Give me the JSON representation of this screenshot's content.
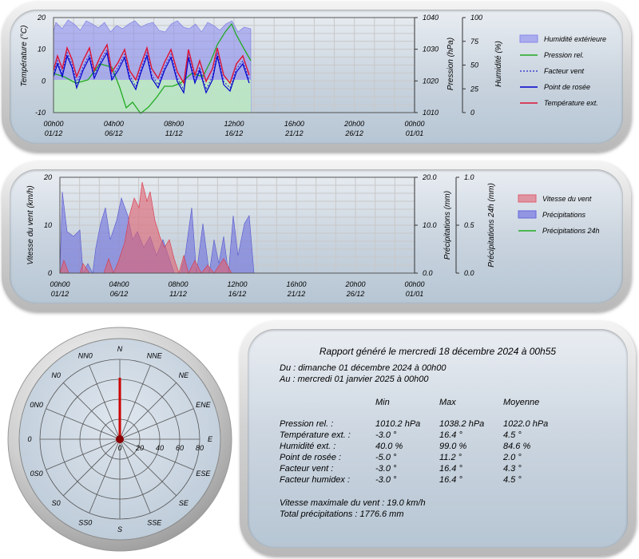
{
  "chart1": {
    "y1_label": "Température (°C)",
    "y2_label": "Pression (hPa)",
    "y3_label": "Humidité (%)",
    "y1_ticks": [
      "20",
      "10",
      "0",
      "-10"
    ],
    "y2_ticks": [
      "1040",
      "1030",
      "1020",
      "1010"
    ],
    "y3_ticks": [
      "100",
      "75",
      "50",
      "25",
      "0"
    ],
    "x_ticks": [
      {
        "time": "00h00",
        "date": "01/12"
      },
      {
        "time": "04h00",
        "date": "06/12"
      },
      {
        "time": "08h00",
        "date": "11/12"
      },
      {
        "time": "12h00",
        "date": "16/12"
      },
      {
        "time": "16h00",
        "date": "21/12"
      },
      {
        "time": "20h00",
        "date": "26/12"
      },
      {
        "time": "00h00",
        "date": "01/01"
      }
    ],
    "legend": [
      {
        "label": "Humidité extérieure",
        "color": "#8888ee",
        "style": "fill"
      },
      {
        "label": "Pression rel.",
        "color": "#22aa22",
        "style": "line"
      },
      {
        "label": "Facteur vent",
        "color": "#2222cc",
        "style": "dash"
      },
      {
        "label": "Point de rosée",
        "color": "#0000cc",
        "style": "line"
      },
      {
        "label": "Température ext.",
        "color": "#dd1133",
        "style": "line"
      }
    ]
  },
  "chart2": {
    "y1_label": "Vitesse du vent (km/h)",
    "y2_label": "Précipitations (mm)",
    "y3_label": "Précipitations 24h (mm)",
    "y1_ticks": [
      "20",
      "10",
      "0"
    ],
    "y2_ticks": [
      "20.0",
      "10.0",
      "0.0"
    ],
    "y3_ticks": [
      "1.0",
      "0.5",
      "0.0"
    ],
    "x_ticks": [
      {
        "time": "00h00",
        "date": "01/12"
      },
      {
        "time": "04h00",
        "date": "06/12"
      },
      {
        "time": "08h00",
        "date": "11/12"
      },
      {
        "time": "12h00",
        "date": "16/12"
      },
      {
        "time": "16h00",
        "date": "21/12"
      },
      {
        "time": "20h00",
        "date": "26/12"
      },
      {
        "time": "00h00",
        "date": "01/01"
      }
    ],
    "legend": [
      {
        "label": "Vitesse du vent",
        "color": "#e06070",
        "style": "fill"
      },
      {
        "label": "Précipitations",
        "color": "#6666dd",
        "style": "fill"
      },
      {
        "label": "Précipitations 24h",
        "color": "#22aa22",
        "style": "line"
      }
    ]
  },
  "compass": {
    "directions": [
      "N",
      "NNE",
      "NE",
      "ENE",
      "E",
      "ESE",
      "SE",
      "SSE",
      "S",
      "SS0",
      "S0",
      "0S0",
      "0",
      "0N0",
      "N0",
      "NN0"
    ],
    "ring_labels": [
      "0",
      "20",
      "40",
      "60",
      "80"
    ],
    "accent_color": "#cc0000"
  },
  "report": {
    "title": "Rapport généré le mercredi 18 décembre 2024 à 00h55",
    "from": "Du : dimanche 01 décembre 2024 à 00h00",
    "to": "Au : mercredi 01 janvier 2025 à 00h00",
    "headers": {
      "min": "Min",
      "max": "Max",
      "avg": "Moyenne"
    },
    "rows": [
      {
        "label": "Pression rel. :",
        "min": "1010.2 hPa",
        "max": "1038.2 hPa",
        "avg": "1022.0 hPa"
      },
      {
        "label": "Température ext. :",
        "min": "-3.0 °",
        "max": "16.4 °",
        "avg": "4.5 °"
      },
      {
        "label": "Humidité ext. :",
        "min": "40.0 %",
        "max": "99.0 %",
        "avg": "84.6 %"
      },
      {
        "label": "Point de rosée :",
        "min": "-5.0 °",
        "max": "11.2 °",
        "avg": "2.0 °"
      },
      {
        "label": "Facteur vent :",
        "min": "-3.0 °",
        "max": "16.4 °",
        "avg": "4.3 °"
      },
      {
        "label": "Facteur humidex :",
        "min": "-3.0 °",
        "max": "16.4 °",
        "avg": "4.5 °"
      }
    ],
    "max_wind": "Vitesse maximale du vent : 19.0 km/h",
    "total_rain": "Total précipitations : 1776.6 mm"
  }
}
